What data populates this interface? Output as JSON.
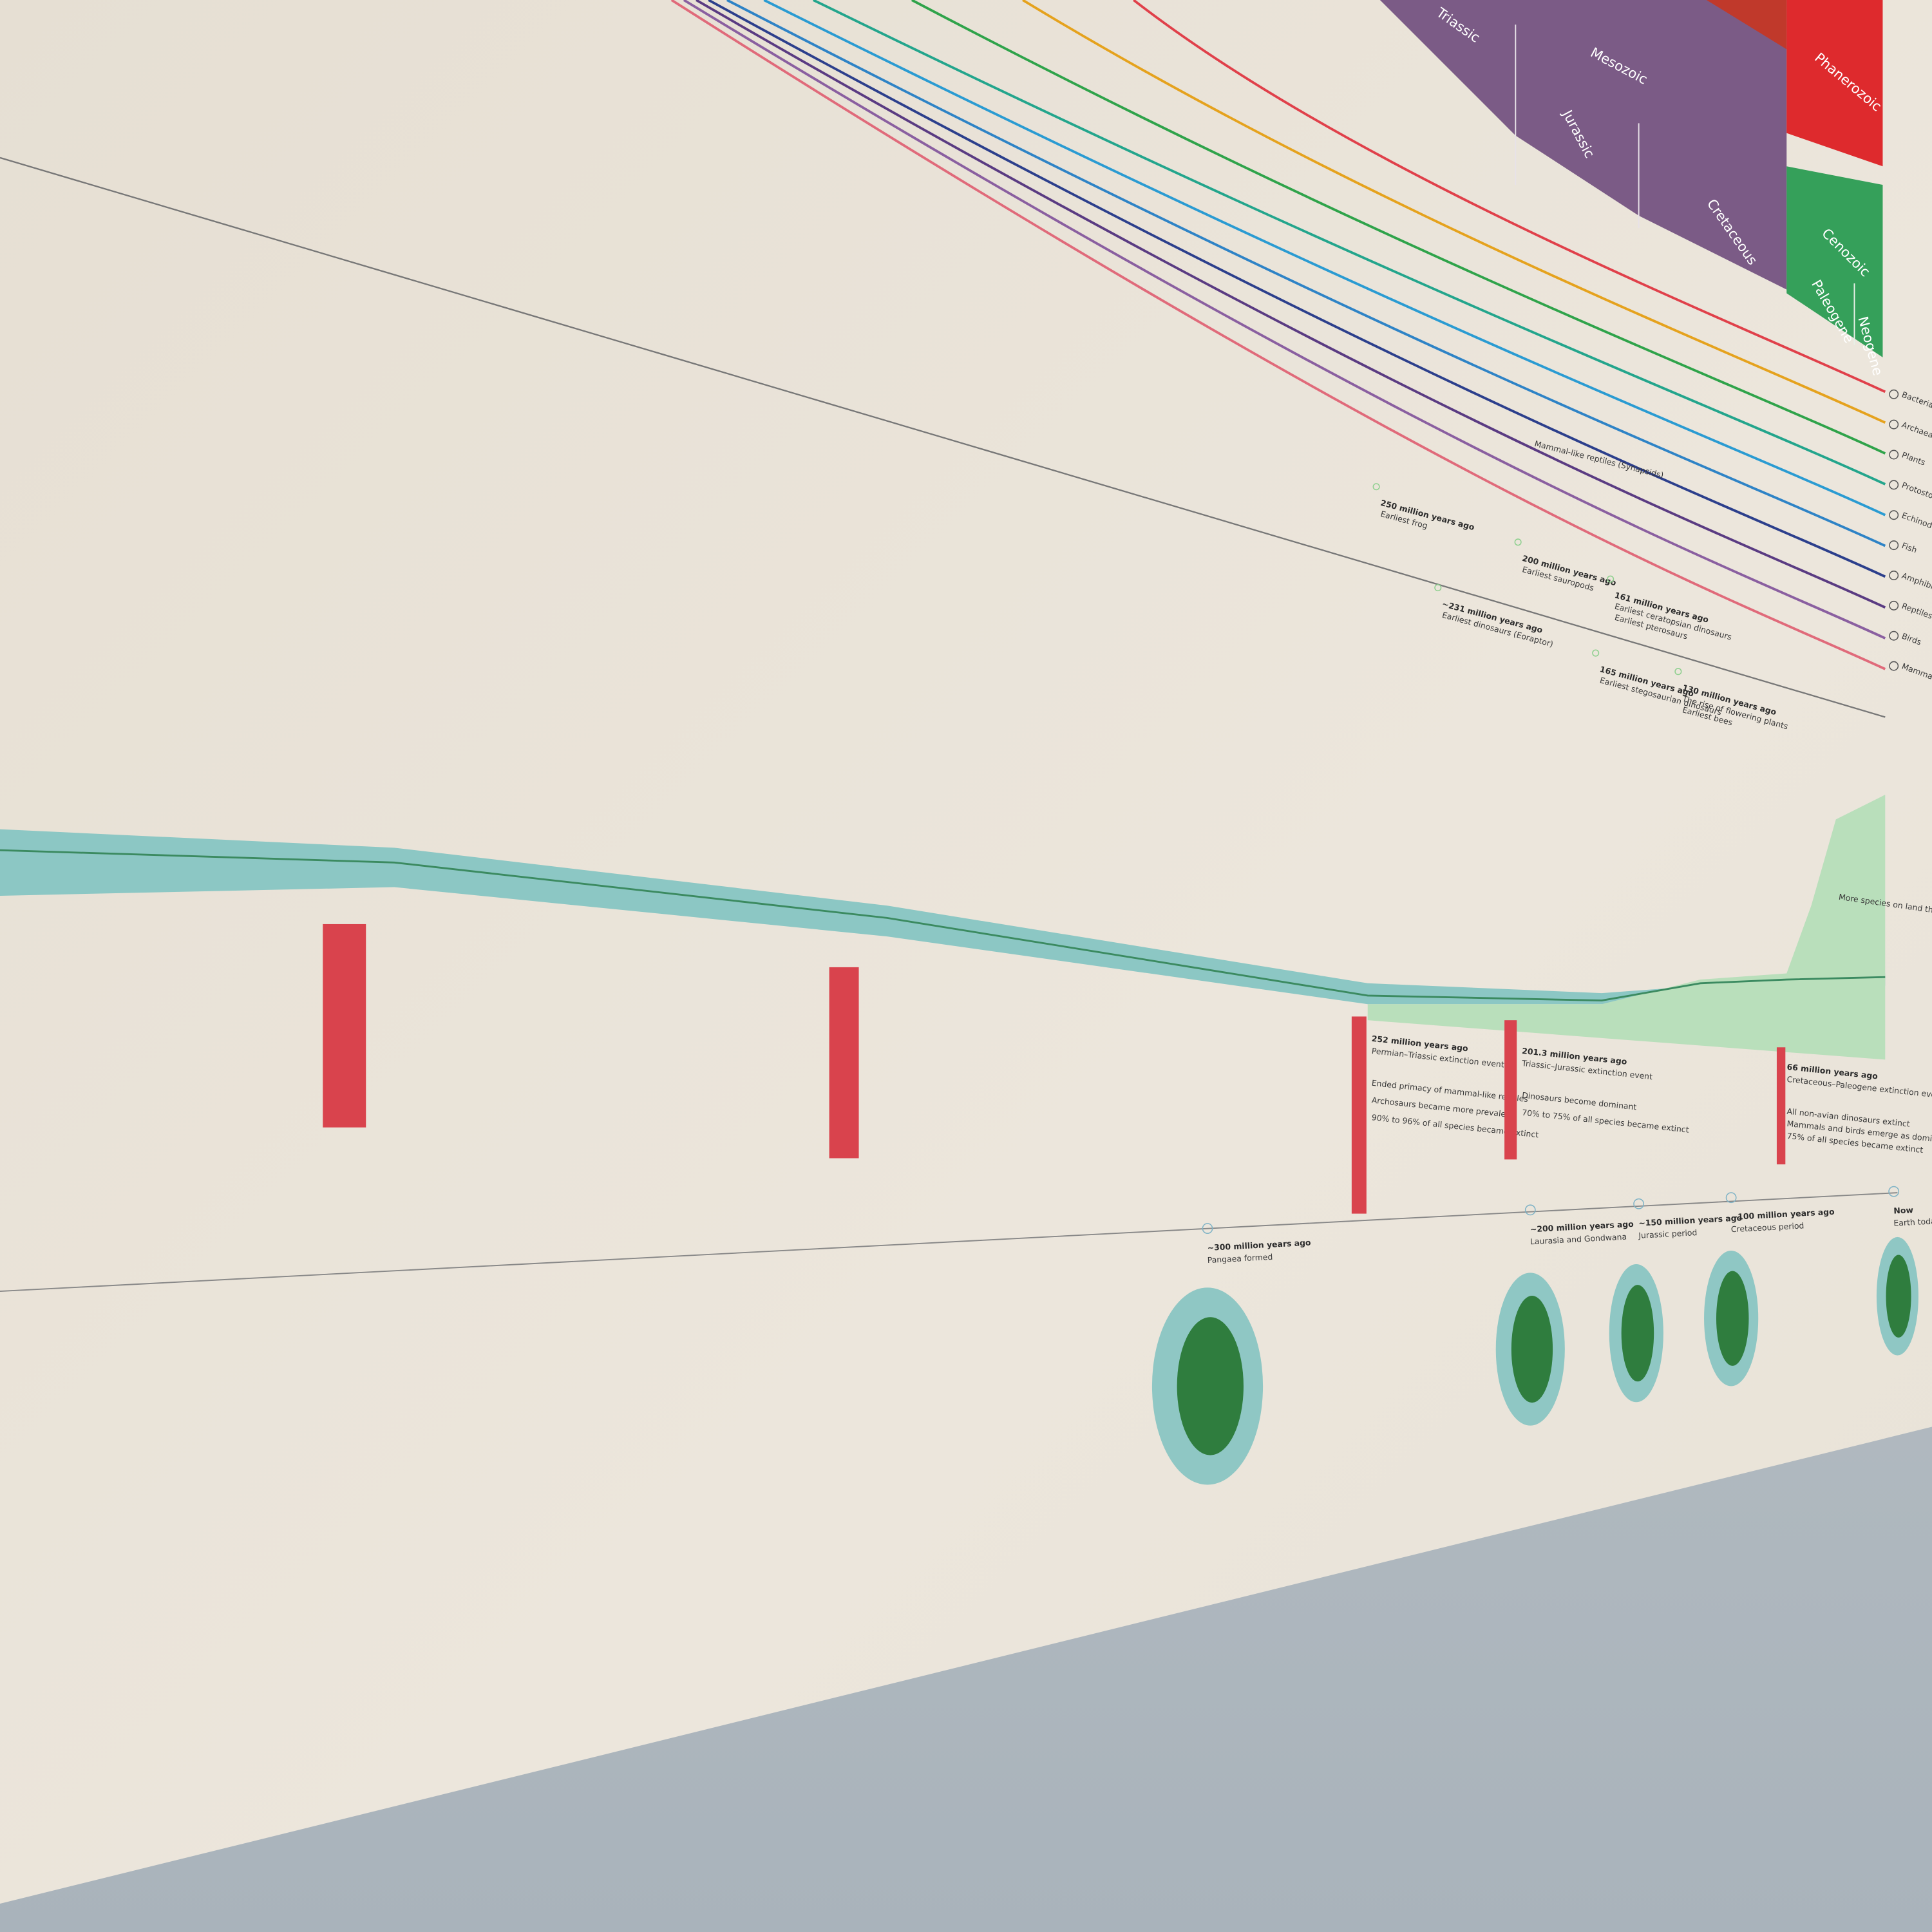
{
  "eras": [
    "Triassic",
    "Mesozoic",
    "Jurassic",
    "Cretaceous",
    "Phanerozoic",
    "Cenozoic",
    "Paleogene",
    "Neogene"
  ],
  "lineage_label": "Mammal-like reptiles (Synapsids)",
  "legend": [
    "Bacteria",
    "Archaea",
    "Plants",
    "Protostomes",
    "Echinoderms",
    "Fish",
    "Amphibians",
    "Reptiles",
    "Birds",
    "Mammals"
  ],
  "events": [
    {
      "date": "250 million years ago",
      "lines": [
        "Earliest frog"
      ]
    },
    {
      "date": "~231 million years ago",
      "lines": [
        "Earliest dinosaurs (Eoraptor)"
      ]
    },
    {
      "date": "200 million years ago",
      "lines": [
        "Earliest sauropods"
      ]
    },
    {
      "date": "161 million years ago",
      "lines": [
        "Earliest ceratopsian dinosaurs",
        "Earliest pterosaurs"
      ]
    },
    {
      "date": "165 million years ago",
      "lines": [
        "Earliest stegosaurian dinosaurs"
      ]
    },
    {
      "date": "130 million years ago",
      "lines": [
        "The rise of flowering plants",
        "Earliest bees"
      ]
    }
  ],
  "extinctions": [
    {
      "date": "252 million years ago",
      "title": "Permian–Triassic extinction event",
      "notes": [
        "Ended primacy of mammal-like reptiles",
        "Archosaurs became more prevalent",
        "90% to 96% of all species became extinct"
      ]
    },
    {
      "date": "201.3 million years ago",
      "title": "Triassic–Jurassic extinction event",
      "notes": [
        "Dinosaurs become dominant",
        "70% to 75% of all species became extinct"
      ]
    },
    {
      "date": "66 million years ago",
      "title": "Cretaceous–Paleogene extinction event",
      "notes": [
        "All non-avian dinosaurs extinct",
        "Mammals and birds emerge as dominant land animals",
        "75% of all species became extinct"
      ]
    }
  ],
  "biodiversity_note": "More species on land than in the sea",
  "continents": [
    {
      "date": "~300 million years ago",
      "label": "Pangaea formed"
    },
    {
      "date": "~200 million years ago",
      "label": "Laurasia and Gondwana"
    },
    {
      "date": "~150 million years ago",
      "label": "Jurassic period"
    },
    {
      "date": "~100 million years ago",
      "label": "Cretaceous period"
    },
    {
      "date": "Now",
      "label": "Earth today"
    }
  ]
}
